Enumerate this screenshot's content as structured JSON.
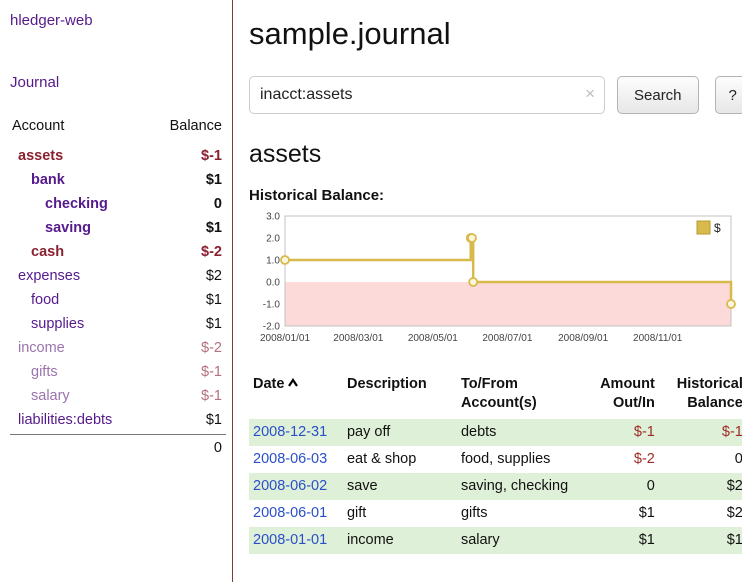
{
  "sidebar": {
    "app_title": "hledger-web",
    "journal_link": "Journal",
    "accounts": {
      "header_account": "Account",
      "header_balance": "Balance",
      "rows": [
        {
          "name": "assets",
          "balance": "$-1"
        },
        {
          "name": "bank",
          "balance": "$1"
        },
        {
          "name": "checking",
          "balance": "0"
        },
        {
          "name": "saving",
          "balance": "$1"
        },
        {
          "name": "cash",
          "balance": "$-2"
        },
        {
          "name": "expenses",
          "balance": "$2"
        },
        {
          "name": "food",
          "balance": "$1"
        },
        {
          "name": "supplies",
          "balance": "$1"
        },
        {
          "name": "income",
          "balance": "$-2"
        },
        {
          "name": "gifts",
          "balance": "$-1"
        },
        {
          "name": "salary",
          "balance": "$-1"
        },
        {
          "name": "liabilities:debts",
          "balance": "$1"
        }
      ],
      "total": "0"
    }
  },
  "main": {
    "title": "sample.journal",
    "search": {
      "value": "inacct:assets",
      "clear_icon": "×",
      "button_label": "Search",
      "help_label": "?"
    },
    "account_heading": "assets",
    "chart": {
      "label": "Historical Balance:",
      "chart_data": {
        "type": "line",
        "step": true,
        "title": "Historical Balance",
        "ylim": [
          -2,
          3
        ],
        "yticks": [
          "3.0",
          "2.0",
          "1.0",
          "0.0",
          "-1.0",
          "-2.0"
        ],
        "xticks": [
          "2008/01/01",
          "2008/03/01",
          "2008/05/01",
          "2008/07/01",
          "2008/09/01",
          "2008/11/01"
        ],
        "x_range": [
          "2008-01-01",
          "2008-12-31"
        ],
        "series": [
          {
            "name": "$",
            "color": "#d8ba4c",
            "points": [
              [
                "2008-01-01",
                1
              ],
              [
                "2008-06-01",
                2
              ],
              [
                "2008-06-02",
                2
              ],
              [
                "2008-06-03",
                0
              ],
              [
                "2008-12-31",
                -1
              ]
            ]
          }
        ],
        "legend_position": "top-right",
        "negative_region_color": "#fcdada",
        "grid": false
      }
    },
    "register": {
      "headers": {
        "date": "Date",
        "description": "Description",
        "account": "To/From Account(s)",
        "amount": "Amount Out/In",
        "balance": "Historical Balance"
      },
      "rows": [
        {
          "date": "2008-12-31",
          "description": "pay off",
          "accounts": "debts",
          "amount": "$-1",
          "balance": "$-1"
        },
        {
          "date": "2008-06-03",
          "description": "eat & shop",
          "accounts": "food, supplies",
          "amount": "$-2",
          "balance": "0"
        },
        {
          "date": "2008-06-02",
          "description": "save",
          "accounts": "saving, checking",
          "amount": "0",
          "balance": "$2"
        },
        {
          "date": "2008-06-01",
          "description": "gift",
          "accounts": "gifts",
          "amount": "$1",
          "balance": "$2"
        },
        {
          "date": "2008-01-01",
          "description": "income",
          "accounts": "salary",
          "amount": "$1",
          "balance": "$1"
        }
      ]
    }
  }
}
